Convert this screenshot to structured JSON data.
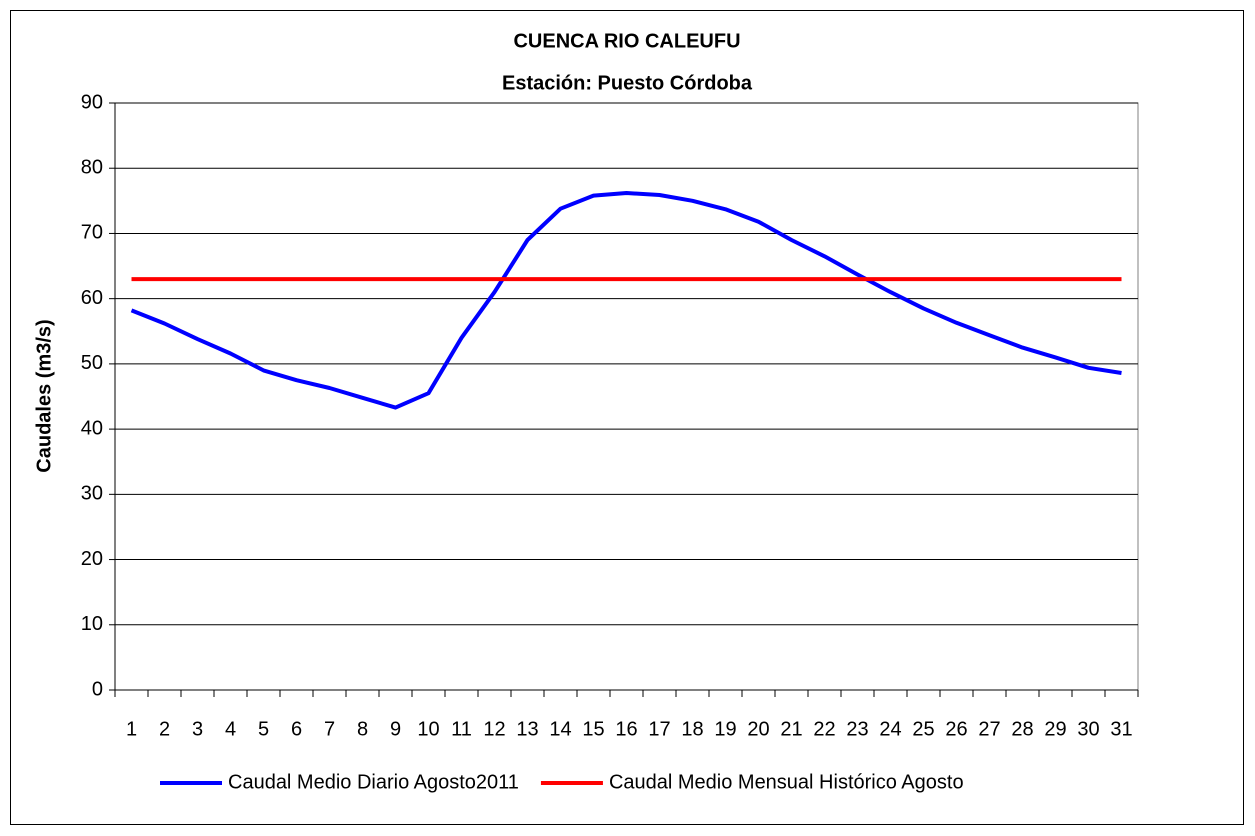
{
  "chart_data": {
    "type": "line",
    "title": "CUENCA RIO CALEUFU",
    "subtitle": "Estación: Puesto Córdoba",
    "ylabel": "Caudales (m3/s)",
    "categories": [
      "1",
      "2",
      "3",
      "4",
      "5",
      "6",
      "7",
      "8",
      "9",
      "10",
      "11",
      "12",
      "13",
      "14",
      "15",
      "16",
      "17",
      "18",
      "19",
      "20",
      "21",
      "22",
      "23",
      "24",
      "25",
      "26",
      "27",
      "28",
      "29",
      "30",
      "31"
    ],
    "series": [
      {
        "name": "Caudal Medio Diario Agosto2011",
        "color": "#0000ff",
        "values": [
          58.2,
          56.2,
          53.8,
          51.6,
          49,
          47.5,
          46.3,
          44.8,
          43.3,
          45.5,
          54,
          61,
          69,
          73.8,
          75.8,
          76.2,
          75.9,
          75,
          73.7,
          71.8,
          69,
          66.5,
          63.7,
          61,
          58.5,
          56.3,
          54.4,
          52.5,
          51,
          49.4,
          48.6
        ]
      },
      {
        "name": "Caudal Medio Mensual Histórico Agosto",
        "color": "#ff0000",
        "values": [
          63,
          63,
          63,
          63,
          63,
          63,
          63,
          63,
          63,
          63,
          63,
          63,
          63,
          63,
          63,
          63,
          63,
          63,
          63,
          63,
          63,
          63,
          63,
          63,
          63,
          63,
          63,
          63,
          63,
          63,
          63
        ]
      }
    ],
    "ylim": [
      0,
      90
    ],
    "yticks": [
      0,
      10,
      20,
      30,
      40,
      50,
      60,
      70,
      80,
      90
    ],
    "grid": true,
    "legend": "bottom"
  }
}
